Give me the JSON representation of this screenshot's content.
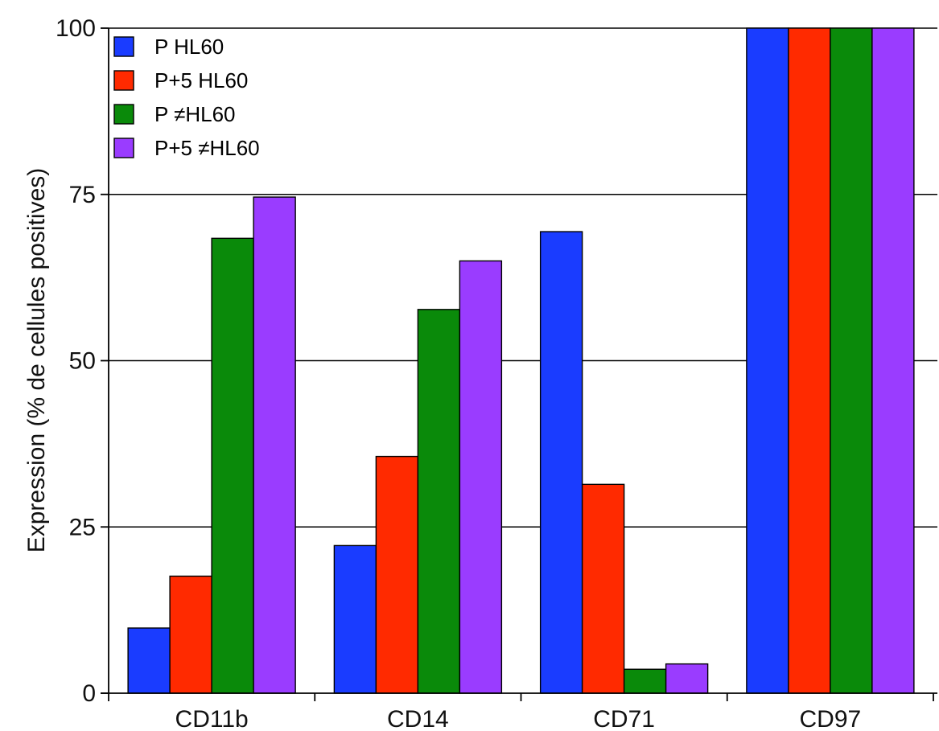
{
  "chart_data": {
    "type": "bar",
    "title": "",
    "xlabel": "",
    "ylabel": "Expression (% de cellules positives)",
    "ylim": [
      0,
      100
    ],
    "yticks": [
      0,
      25,
      50,
      75,
      100
    ],
    "grid": "horizontal",
    "legend_position": "top-left",
    "categories": [
      "CD11b",
      "CD14",
      "CD71",
      "CD97"
    ],
    "series": [
      {
        "name": "P HL60",
        "color": "#1a3cff",
        "values": [
          9.8,
          22.2,
          69.4,
          100
        ]
      },
      {
        "name": "P+5 HL60",
        "color": "#ff2a00",
        "values": [
          17.6,
          35.6,
          31.4,
          100
        ]
      },
      {
        "name": "P ≠HL60",
        "color": "#0a8a0a",
        "values": [
          68.4,
          57.7,
          3.6,
          100
        ]
      },
      {
        "name": "P+5 ≠HL60",
        "color": "#9a3cff",
        "values": [
          74.6,
          65.0,
          4.4,
          100
        ]
      }
    ]
  }
}
